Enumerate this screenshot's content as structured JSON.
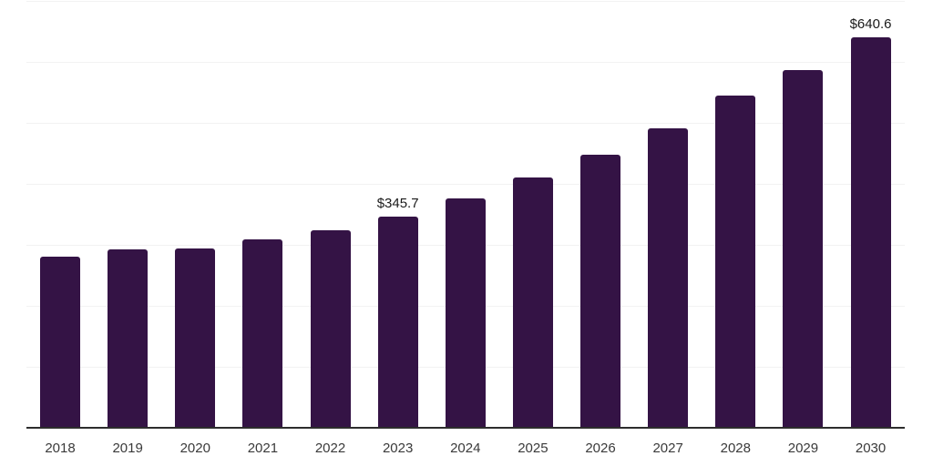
{
  "chart_data": {
    "type": "bar",
    "title": "",
    "categories": [
      "2018",
      "2019",
      "2020",
      "2021",
      "2022",
      "2023",
      "2024",
      "2025",
      "2026",
      "2027",
      "2028",
      "2029",
      "2030"
    ],
    "values": [
      280.8,
      292.6,
      294.3,
      309.4,
      324.2,
      345.7,
      376.4,
      410.7,
      448.2,
      491.5,
      545.0,
      586.4,
      640.6
    ],
    "value_labels": {
      "2023": "$345.7",
      "2030": "$640.6"
    },
    "unit_prefix": "$",
    "ylim": [
      0,
      700
    ],
    "gridlines": [
      100,
      200,
      300,
      400,
      500,
      600,
      700
    ],
    "grid": true,
    "legend": false,
    "xlabel": "",
    "ylabel": "",
    "colors": {
      "bar": "#341345",
      "gridline": "#f2f2f2",
      "axis_line": "#2d2d2d",
      "tick_label": "#3a3a3a",
      "value_label": "#1a1a1a",
      "background": "#ffffff"
    }
  }
}
